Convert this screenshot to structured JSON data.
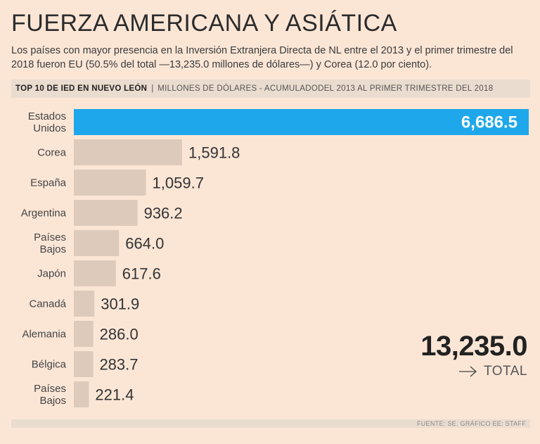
{
  "title": "FUERZA AMERICANA Y ASIÁTICA",
  "subtitle": "Los países con mayor presencia en la Inversión Extranjera Directa de NL entre el 2013 y el primer trimestre del 2018 fueron EU (50.5% del total —13,235.0 millones de dólares—) y Corea (12.0 por ciento).",
  "header": {
    "strong": "TOP 10 DE IED EN NUEVO LEÓN",
    "separator": "|",
    "light": "MILLONES DE DÓLARES - ACUMULADODEL 2013 AL PRIMER TRIMESTRE DEL 2018"
  },
  "total": {
    "value": "13,235.0",
    "label": "TOTAL"
  },
  "footer": "FUENTE: SE. GRÁFICO EE: STAFF",
  "colors": {
    "highlight": "#1ea7ea",
    "bar": "#ddcabb",
    "background": "#fbe6d6"
  },
  "chart_data": {
    "type": "bar",
    "orientation": "horizontal",
    "categories": [
      [
        "Estados",
        "Unidos"
      ],
      [
        "Corea"
      ],
      [
        "España"
      ],
      [
        "Argentina"
      ],
      [
        "Países",
        "Bajos"
      ],
      [
        "Japón"
      ],
      [
        "Canadá"
      ],
      [
        "Alemania"
      ],
      [
        "Bélgica"
      ],
      [
        "Países",
        "Bajos"
      ]
    ],
    "values": [
      6686.5,
      1591.8,
      1059.7,
      936.2,
      664.0,
      617.6,
      301.9,
      286.0,
      283.7,
      221.4
    ],
    "labels": [
      "6,686.5",
      "1,591.8",
      "1,059.7",
      "936.2",
      "664.0",
      "617.6",
      "301.9",
      "286.0",
      "283.7",
      "221.4"
    ],
    "highlight_index": 0,
    "xlim": [
      0,
      6686.5
    ]
  }
}
